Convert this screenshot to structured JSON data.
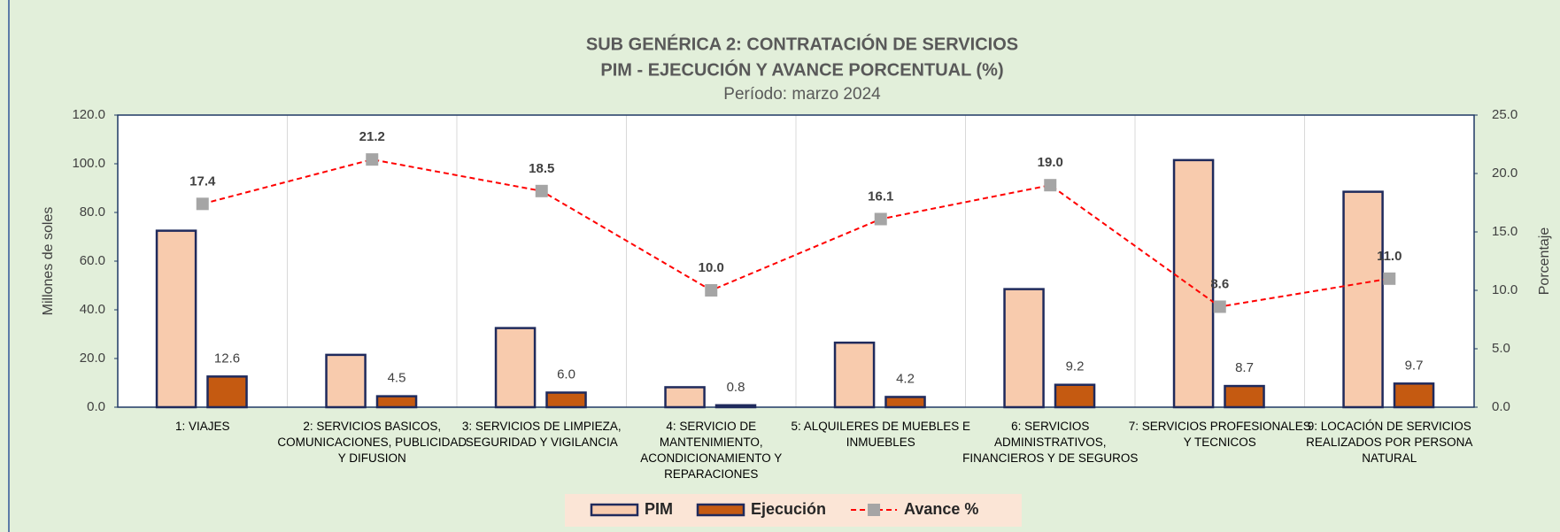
{
  "chart_data": {
    "type": "bar_line",
    "title": "SUB GENÉRICA 2: CONTRATACIÓN DE SERVICIOS",
    "subtitle": "PIM - EJECUCIÓN Y AVANCE PORCENTUAL (%)",
    "period": "Período: marzo  2024",
    "y_label": "Millones de soles",
    "y2_label": "Porcentaje",
    "categories": [
      "1: VIAJES",
      "2: SERVICIOS BASICOS, COMUNICACIONES, PUBLICIDAD Y DIFUSION",
      "3: SERVICIOS DE LIMPIEZA, SEGURIDAD Y VIGILANCIA",
      "4: SERVICIO DE MANTENIMIENTO, ACONDICIONAMIENTO Y REPARACIONES",
      "5: ALQUILERES DE MUEBLES E INMUEBLES",
      "6: SERVICIOS ADMINISTRATIVOS, FINANCIEROS Y DE SEGUROS",
      "7: SERVICIOS PROFESIONALES Y TECNICOS",
      "9: LOCACIÓN DE SERVICIOS REALIZADOS POR PERSONA NATURAL"
    ],
    "series": [
      {
        "name": "PIM",
        "kind": "bar",
        "color": "#f8cbad",
        "values": [
          72.5,
          21.5,
          32.5,
          8.2,
          26.5,
          48.5,
          101.5,
          88.5
        ]
      },
      {
        "name": "Ejecución",
        "kind": "bar",
        "color": "#c55a11",
        "values": [
          12.6,
          4.5,
          6.0,
          0.8,
          4.2,
          9.2,
          8.7,
          9.7
        ],
        "value_labels": [
          "12.6",
          "4.5",
          "6.0",
          "0.8",
          "4.2",
          "9.2",
          "8.7",
          "9.7"
        ]
      },
      {
        "name": "Avance %",
        "kind": "line",
        "axis": "y2",
        "color": "#ff0000",
        "marker_color": "#a5a5a5",
        "values": [
          17.4,
          21.2,
          18.5,
          10.0,
          16.1,
          19.0,
          8.6,
          11.0
        ],
        "value_labels": [
          "17.4",
          "21.2",
          "18.5",
          "10.0",
          "16.1",
          "19.0",
          "8.6",
          "11.0"
        ]
      }
    ],
    "ylim": [
      0,
      120
    ],
    "yticks": [
      {
        "value": 0,
        "label": "0.0"
      },
      {
        "value": 20,
        "label": "20.0"
      },
      {
        "value": 40,
        "label": "40.0"
      },
      {
        "value": 60,
        "label": "60.0"
      },
      {
        "value": 80,
        "label": "80.0"
      },
      {
        "value": 100,
        "label": "100.0"
      },
      {
        "value": 120,
        "label": "120.0"
      }
    ],
    "y2lim": [
      0,
      25
    ],
    "y2ticks": [
      {
        "value": 0,
        "label": "0.0"
      },
      {
        "value": 5,
        "label": "5.0"
      },
      {
        "value": 10,
        "label": "10.0"
      },
      {
        "value": 15,
        "label": "15.0"
      },
      {
        "value": 20,
        "label": "20.0"
      },
      {
        "value": 25,
        "label": "25.0"
      }
    ],
    "legend": "bottom"
  }
}
